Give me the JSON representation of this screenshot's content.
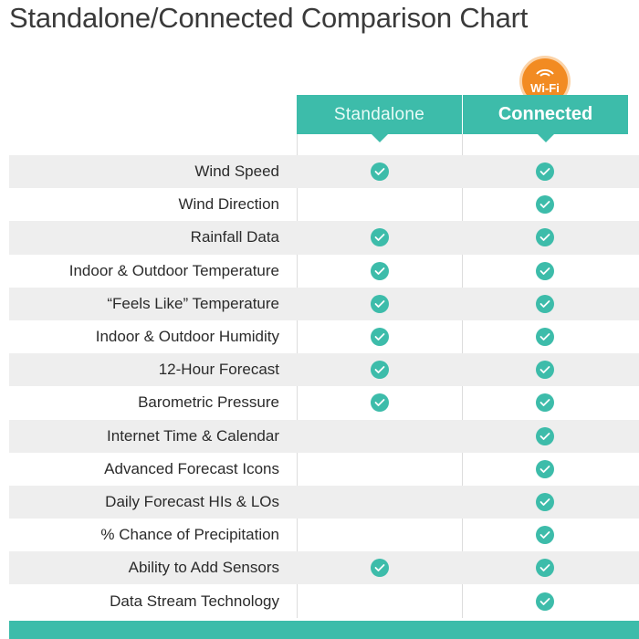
{
  "title": "Standalone/Connected Comparison Chart",
  "badge": {
    "text": "Wi-Fi",
    "icon": "wifi-icon",
    "color": "#f28b22"
  },
  "columns": [
    {
      "label": "Standalone"
    },
    {
      "label": "Connected"
    }
  ],
  "accent_color": "#3dbcaa",
  "check_icon": "check-circle-icon",
  "rows": [
    {
      "label": "Wind Speed",
      "standalone": true,
      "connected": true
    },
    {
      "label": "Wind Direction",
      "standalone": false,
      "connected": true
    },
    {
      "label": "Rainfall Data",
      "standalone": true,
      "connected": true
    },
    {
      "label": "Indoor & Outdoor Temperature",
      "standalone": true,
      "connected": true
    },
    {
      "label": "“Feels Like” Temperature",
      "standalone": true,
      "connected": true
    },
    {
      "label": "Indoor & Outdoor Humidity",
      "standalone": true,
      "connected": true
    },
    {
      "label": "12-Hour Forecast",
      "standalone": true,
      "connected": true
    },
    {
      "label": "Barometric Pressure",
      "standalone": true,
      "connected": true
    },
    {
      "label": "Internet Time & Calendar",
      "standalone": false,
      "connected": true
    },
    {
      "label": "Advanced Forecast Icons",
      "standalone": false,
      "connected": true
    },
    {
      "label": "Daily Forecast HIs & LOs",
      "standalone": false,
      "connected": true
    },
    {
      "label": "% Chance of Precipitation",
      "standalone": false,
      "connected": true
    },
    {
      "label": "Ability to Add Sensors",
      "standalone": true,
      "connected": true
    },
    {
      "label": "Data Stream Technology",
      "standalone": false,
      "connected": true
    }
  ]
}
